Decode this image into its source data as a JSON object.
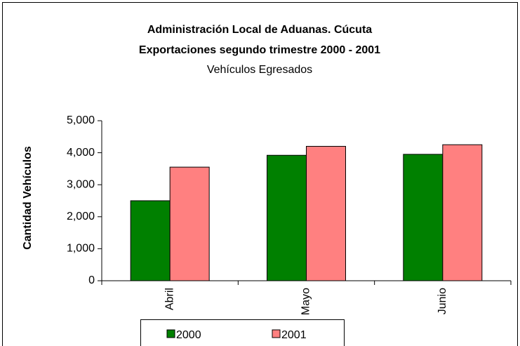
{
  "chart_data": {
    "type": "bar",
    "title": [
      "Administración Local de Aduanas. Cúcuta",
      "Exportaciones segundo trimestre 2000 - 2001"
    ],
    "subtitle": "Vehículos Egresados",
    "y_label": "Cantidad Vehículos",
    "categories": [
      "Abril",
      "Mayo",
      "Junio"
    ],
    "series": [
      {
        "name": "2000",
        "color": "#008000",
        "values": [
          2500,
          3920,
          3950
        ]
      },
      {
        "name": "2001",
        "color": "#ff8080",
        "values": [
          3550,
          4200,
          4250
        ]
      }
    ],
    "ylim": [
      0,
      5000
    ],
    "yticks": [
      0,
      {
        "value": 1000,
        "label": "1,000"
      },
      {
        "value": 2000,
        "label": "2,000"
      },
      {
        "value": 3000,
        "label": "3,000"
      },
      {
        "value": 4000,
        "label": "4,000"
      },
      {
        "value": 5000,
        "label": "5,000"
      }
    ],
    "grid": false
  }
}
